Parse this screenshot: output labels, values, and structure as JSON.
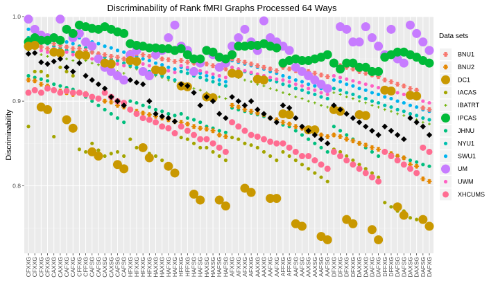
{
  "chart_data": {
    "type": "scatter",
    "title": "Discriminability of Rank fMRI Graphs Processed 64 Ways",
    "xlabel": "",
    "ylabel": "Discriminability",
    "ylim": [
      0.72,
      1.0
    ],
    "yticks": [
      0.8,
      0.9,
      1.0
    ],
    "ytick_labels": [
      "0.8",
      "0.9",
      "1.0"
    ],
    "grid": true,
    "legend_title": "Data sets",
    "legend_position": "right",
    "categories": [
      "CFXXG",
      "CFXXG",
      "CFXXG",
      "CFXXG",
      "CAXXG",
      "CAXXG",
      "CAFXG",
      "CAFXG",
      "CFFXG",
      "CFFXG",
      "CAFSG",
      "CAFSG",
      "CAXSG",
      "CAXSG",
      "CAFSG",
      "CAFSG",
      "HFXXG",
      "HFXXG",
      "HFXXG",
      "HFXXG",
      "HAXXG",
      "HAXXG",
      "HAFXG",
      "HAFXG",
      "HFFXG",
      "HFFXG",
      "HAFSG",
      "HAFSG",
      "HAXSG",
      "HAXSG",
      "HAFSG",
      "HAFSG",
      "AFXXG",
      "AFXXG",
      "AFXXG",
      "AFXXG",
      "AAXXG",
      "AAXXG",
      "AAFXG",
      "AAFXG",
      "AFFXG",
      "AFFXG",
      "AAFSG",
      "AAFSG",
      "AAXSG",
      "AAXSG",
      "AAFSG",
      "AAFSG",
      "DFXXG",
      "DFXXG",
      "DFXXG",
      "DFXXG",
      "DAXXG",
      "DAXXG",
      "DAFXG",
      "DAFXG",
      "DFFXG",
      "DFFXG",
      "DAFSG",
      "DAFSG",
      "DAXSG",
      "DAXSG",
      "DAFSG",
      "DAFXG"
    ],
    "series": [
      {
        "name": "BNU1",
        "color": "#F8766D",
        "marker": "asterisk",
        "values": [
          0.968,
          0.966,
          0.964,
          0.962,
          0.968,
          0.966,
          0.964,
          0.962,
          0.962,
          0.96,
          0.958,
          0.956,
          0.955,
          0.953,
          0.952,
          0.95,
          0.958,
          0.956,
          0.955,
          0.953,
          0.952,
          0.95,
          0.949,
          0.947,
          0.948,
          0.946,
          0.945,
          0.943,
          0.944,
          0.942,
          0.94,
          0.938,
          0.95,
          0.948,
          0.946,
          0.944,
          0.942,
          0.94,
          0.938,
          0.936,
          0.94,
          0.938,
          0.936,
          0.934,
          0.935,
          0.933,
          0.931,
          0.929,
          0.944,
          0.942,
          0.94,
          0.938,
          0.935,
          0.933,
          0.931,
          0.929,
          0.925,
          0.923,
          0.92,
          0.918,
          0.915,
          0.913,
          0.892,
          0.89
        ]
      },
      {
        "name": "BNU2",
        "color": "#E58700",
        "marker": "asterisk",
        "values": [
          0.925,
          0.924,
          0.92,
          0.918,
          0.913,
          0.912,
          0.91,
          0.908,
          0.91,
          0.909,
          0.905,
          0.903,
          0.9,
          0.899,
          0.895,
          0.893,
          0.89,
          0.888,
          0.886,
          0.884,
          0.882,
          0.88,
          0.878,
          0.876,
          0.875,
          0.873,
          0.87,
          0.868,
          0.867,
          0.865,
          0.86,
          0.858,
          0.895,
          0.893,
          0.89,
          0.888,
          0.886,
          0.884,
          0.88,
          0.878,
          0.875,
          0.873,
          0.87,
          0.868,
          0.865,
          0.863,
          0.86,
          0.858,
          0.86,
          0.858,
          0.855,
          0.853,
          0.85,
          0.848,
          0.845,
          0.843,
          0.84,
          0.838,
          0.835,
          0.833,
          0.825,
          0.823,
          0.808,
          0.805
        ]
      },
      {
        "name": "DC1",
        "color": "#C99800",
        "marker": "circle-large",
        "values": [
          0.965,
          0.966,
          0.893,
          0.89,
          0.958,
          0.957,
          0.878,
          0.868,
          0.955,
          0.954,
          0.84,
          0.835,
          0.945,
          0.944,
          0.825,
          0.82,
          0.948,
          0.947,
          0.845,
          0.833,
          0.937,
          0.936,
          0.823,
          0.815,
          0.918,
          0.917,
          0.79,
          0.783,
          0.905,
          0.904,
          0.783,
          0.776,
          0.933,
          0.932,
          0.797,
          0.792,
          0.926,
          0.925,
          0.785,
          0.785,
          0.885,
          0.884,
          0.755,
          0.752,
          0.866,
          0.866,
          0.74,
          0.736,
          0.89,
          0.888,
          0.76,
          0.755,
          0.884,
          0.883,
          0.748,
          0.736,
          0.913,
          0.912,
          0.775,
          0.765,
          0.907,
          0.906,
          0.76,
          0.752
        ]
      },
      {
        "name": "IACAS",
        "color": "#A3A500",
        "marker": "circle-small",
        "values": [
          0.87,
          0.935,
          0.935,
          0.93,
          0.858,
          0.94,
          0.935,
          0.93,
          0.843,
          0.84,
          0.85,
          0.842,
          0.835,
          0.838,
          0.84,
          0.835,
          0.855,
          0.845,
          0.842,
          0.838,
          0.835,
          0.83,
          0.82,
          0.815,
          0.857,
          0.855,
          0.85,
          0.845,
          0.845,
          0.84,
          0.835,
          0.83,
          0.857,
          0.855,
          0.85,
          0.848,
          0.845,
          0.84,
          0.835,
          0.83,
          0.84,
          0.835,
          0.83,
          0.825,
          0.82,
          0.815,
          0.81,
          0.805,
          0.843,
          0.84,
          0.835,
          0.83,
          0.825,
          0.82,
          0.815,
          0.81,
          0.78,
          0.775,
          0.77,
          0.77,
          0.762,
          0.76,
          0.758,
          0.755
        ]
      },
      {
        "name": "IBATRT",
        "color": "#6BB100",
        "marker": "plus",
        "values": [
          0.96,
          0.958,
          0.955,
          0.953,
          0.955,
          0.953,
          0.95,
          0.948,
          0.95,
          0.948,
          0.945,
          0.943,
          0.94,
          0.938,
          0.935,
          0.933,
          0.94,
          0.938,
          0.935,
          0.933,
          0.93,
          0.928,
          0.925,
          0.923,
          0.92,
          0.918,
          0.915,
          0.913,
          0.91,
          0.908,
          0.905,
          0.903,
          0.93,
          0.928,
          0.925,
          0.923,
          0.92,
          0.918,
          0.915,
          0.913,
          0.91,
          0.908,
          0.905,
          0.903,
          0.9,
          0.898,
          0.895,
          0.893,
          0.91,
          0.908,
          0.905,
          0.903,
          0.9,
          0.898,
          0.895,
          0.893,
          0.89,
          0.888,
          0.885,
          0.883,
          0.88,
          0.878,
          0.875,
          0.873
        ]
      },
      {
        "name": "IPCAS",
        "color": "#00BA38",
        "marker": "circle-large",
        "values": [
          0.97,
          0.975,
          0.972,
          0.972,
          0.975,
          0.972,
          0.985,
          0.98,
          0.99,
          0.988,
          0.986,
          0.985,
          0.988,
          0.985,
          0.982,
          0.98,
          0.968,
          0.966,
          0.965,
          0.963,
          0.963,
          0.962,
          0.962,
          0.96,
          0.962,
          0.955,
          0.95,
          0.95,
          0.96,
          0.958,
          0.952,
          0.95,
          0.955,
          0.965,
          0.965,
          0.966,
          0.966,
          0.968,
          0.965,
          0.963,
          0.945,
          0.948,
          0.95,
          0.948,
          0.948,
          0.95,
          0.952,
          0.955,
          0.945,
          0.938,
          0.945,
          0.945,
          0.94,
          0.94,
          0.935,
          0.935,
          0.952,
          0.955,
          0.958,
          0.958,
          0.955,
          0.952,
          0.948,
          0.945
        ]
      },
      {
        "name": "JHNU",
        "color": "#00BF7D",
        "marker": "circle-small",
        "values": [
          0.93,
          0.928,
          0.926,
          0.924,
          0.92,
          0.918,
          0.916,
          0.914,
          0.91,
          0.905,
          0.9,
          0.895,
          0.89,
          0.885,
          0.88,
          0.875,
          0.9,
          0.898,
          0.895,
          0.893,
          0.89,
          0.888,
          0.885,
          0.883,
          0.885,
          0.88,
          0.878,
          0.875,
          0.87,
          0.868,
          0.865,
          0.863,
          0.892,
          0.89,
          0.888,
          0.886,
          0.884,
          0.882,
          0.88,
          0.878,
          0.872,
          0.87,
          0.865,
          0.86,
          0.855,
          0.85,
          0.845,
          0.84,
          0.87,
          0.865,
          0.86,
          0.855,
          0.85,
          0.845,
          0.84,
          0.835,
          0.84,
          0.838,
          0.835,
          0.833,
          0.83,
          0.828,
          0.825,
          0.823
        ]
      },
      {
        "name": "NYU1",
        "color": "#00C0AF",
        "marker": "circle-small",
        "values": [
          0.975,
          0.973,
          0.97,
          0.968,
          0.965,
          0.963,
          0.96,
          0.958,
          0.965,
          0.963,
          0.958,
          0.955,
          0.952,
          0.95,
          0.948,
          0.945,
          0.942,
          0.94,
          0.938,
          0.935,
          0.932,
          0.93,
          0.928,
          0.925,
          0.935,
          0.933,
          0.93,
          0.928,
          0.925,
          0.923,
          0.92,
          0.918,
          0.94,
          0.938,
          0.935,
          0.933,
          0.93,
          0.928,
          0.925,
          0.923,
          0.92,
          0.918,
          0.915,
          0.913,
          0.91,
          0.908,
          0.905,
          0.903,
          0.915,
          0.913,
          0.91,
          0.908,
          0.905,
          0.903,
          0.9,
          0.898,
          0.895,
          0.893,
          0.89,
          0.888,
          0.885,
          0.883,
          0.88,
          0.878
        ]
      },
      {
        "name": "SWU1",
        "color": "#00B4EF",
        "marker": "circle-small",
        "values": [
          0.985,
          0.983,
          0.98,
          0.978,
          0.975,
          0.973,
          0.97,
          0.968,
          0.975,
          0.973,
          0.97,
          0.968,
          0.965,
          0.963,
          0.96,
          0.958,
          0.955,
          0.953,
          0.95,
          0.948,
          0.945,
          0.943,
          0.94,
          0.938,
          0.94,
          0.938,
          0.935,
          0.933,
          0.93,
          0.928,
          0.925,
          0.923,
          0.948,
          0.946,
          0.944,
          0.942,
          0.94,
          0.938,
          0.935,
          0.933,
          0.93,
          0.928,
          0.925,
          0.923,
          0.92,
          0.918,
          0.915,
          0.913,
          0.925,
          0.923,
          0.92,
          0.918,
          0.915,
          0.913,
          0.91,
          0.908,
          0.905,
          0.903,
          0.9,
          0.898,
          0.895,
          0.893,
          0.89,
          0.888
        ]
      },
      {
        "name": "UM",
        "color": "#C77CFF",
        "marker": "circle-large",
        "values": [
          0.997,
          0.985,
          0.978,
          0.975,
          0.975,
          0.997,
          0.985,
          0.975,
          0.98,
          0.97,
          0.965,
          0.95,
          0.94,
          0.935,
          0.93,
          0.925,
          0.955,
          0.96,
          0.935,
          0.93,
          0.955,
          0.96,
          0.975,
          0.99,
          0.965,
          0.96,
          0.935,
          0.945,
          0.96,
          0.955,
          0.94,
          0.945,
          0.965,
          0.975,
          0.985,
          0.97,
          0.96,
          0.995,
          0.975,
          0.97,
          0.965,
          0.96,
          0.94,
          0.935,
          0.93,
          0.925,
          0.92,
          0.915,
          0.945,
          0.988,
          0.985,
          0.97,
          0.97,
          0.988,
          0.975,
          0.965,
          0.955,
          0.985,
          0.95,
          0.945,
          0.99,
          0.98,
          0.97,
          0.96
        ]
      },
      {
        "name": "UWM",
        "color": "#FF61C3",
        "marker": "circle-small",
        "values": [
          0.965,
          0.963,
          0.96,
          0.958,
          0.962,
          0.96,
          0.958,
          0.955,
          0.955,
          0.953,
          0.95,
          0.948,
          0.948,
          0.946,
          0.944,
          0.942,
          0.948,
          0.946,
          0.944,
          0.942,
          0.94,
          0.938,
          0.936,
          0.934,
          0.942,
          0.94,
          0.938,
          0.936,
          0.934,
          0.932,
          0.93,
          0.928,
          0.94,
          0.938,
          0.936,
          0.934,
          0.932,
          0.93,
          0.928,
          0.926,
          0.925,
          0.923,
          0.92,
          0.918,
          0.915,
          0.913,
          0.91,
          0.908,
          0.93,
          0.928,
          0.926,
          0.924,
          0.922,
          0.92,
          0.918,
          0.916,
          0.915,
          0.913,
          0.91,
          0.908,
          0.905,
          0.903,
          0.9,
          0.898
        ]
      },
      {
        "name": "XHCUMS",
        "color": "#FF6C91",
        "marker": "circle-medium",
        "values": [
          0.91,
          0.913,
          0.91,
          0.915,
          0.913,
          0.91,
          0.912,
          0.91,
          0.91,
          0.908,
          0.905,
          0.903,
          0.91,
          0.905,
          0.9,
          0.898,
          0.89,
          0.885,
          0.88,
          0.878,
          0.875,
          0.87,
          0.868,
          0.862,
          0.87,
          0.865,
          0.86,
          0.855,
          0.855,
          0.85,
          0.845,
          0.84,
          0.875,
          0.87,
          0.865,
          0.86,
          0.858,
          0.855,
          0.852,
          0.85,
          0.85,
          0.845,
          0.84,
          0.835,
          0.835,
          0.83,
          0.825,
          0.82,
          0.84,
          0.835,
          0.83,
          0.825,
          0.82,
          0.815,
          0.81,
          0.805,
          0.84,
          0.835,
          0.83,
          0.825,
          0.82,
          0.815,
          0.845,
          0.84
        ]
      },
      {
        "name": "",
        "color": "#000000",
        "marker": "diamond",
        "values": [
          0.956,
          0.957,
          0.946,
          0.944,
          0.947,
          0.95,
          0.94,
          0.935,
          0.945,
          0.93,
          0.925,
          0.92,
          0.915,
          0.905,
          0.9,
          0.895,
          0.925,
          0.922,
          0.92,
          0.9,
          0.885,
          0.882,
          0.88,
          0.876,
          0.92,
          0.918,
          0.91,
          0.895,
          0.905,
          0.9,
          0.885,
          0.88,
          0.905,
          0.9,
          0.895,
          0.9,
          0.89,
          0.885,
          0.88,
          0.875,
          0.895,
          0.892,
          0.88,
          0.87,
          0.865,
          0.86,
          0.855,
          0.85,
          0.895,
          0.89,
          0.885,
          0.88,
          0.875,
          0.87,
          0.865,
          0.86,
          0.87,
          0.865,
          0.86,
          0.855,
          0.88,
          0.875,
          0.87,
          0.86
        ]
      }
    ]
  }
}
